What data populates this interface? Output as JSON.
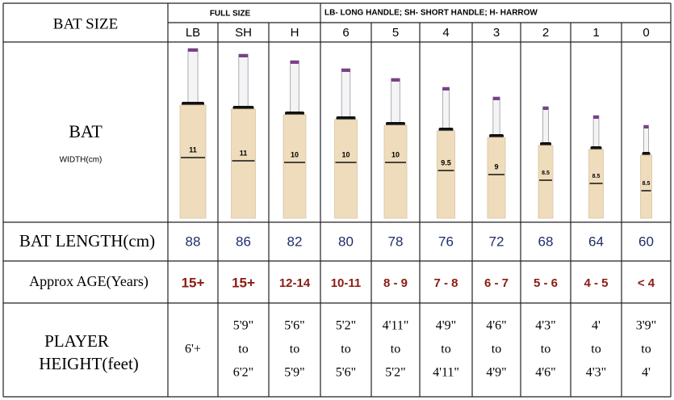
{
  "header": {
    "title": "BAT SIZE",
    "full_size": "FULL SIZE",
    "legend": "LB- LONG HANDLE; SH- SHORT HANDLE; H- HARROW"
  },
  "columns": [
    "LB",
    "SH",
    "H",
    "6",
    "5",
    "4",
    "3",
    "2",
    "1",
    "0"
  ],
  "rows": {
    "bat": {
      "label": "BAT",
      "sublabel": "WIDTH(cm)",
      "widths": [
        11,
        11,
        10,
        10,
        10,
        9.5,
        9,
        8.5,
        8.5,
        8.5
      ]
    },
    "length": {
      "label": "BAT LENGTH(cm)",
      "values": [
        88,
        86,
        82,
        80,
        78,
        76,
        72,
        68,
        64,
        60
      ]
    },
    "age": {
      "label": "Approx AGE(Years)",
      "values": [
        "15+",
        "15+",
        "12-14",
        "10-11",
        "8 - 9",
        "7 - 8",
        "6 - 7",
        "5 - 6",
        "4 - 5",
        "< 4"
      ]
    },
    "height": {
      "label": [
        "PLAYER",
        "HEIGHT(feet)"
      ],
      "values": [
        [
          "6'+"
        ],
        [
          "5'9\"",
          "to",
          "6'2\""
        ],
        [
          "5'6\"",
          "to",
          "5'9\""
        ],
        [
          "5'2\"",
          "to",
          "5'6\""
        ],
        [
          "4'11\"",
          "to",
          "5'2\""
        ],
        [
          "4'9\"",
          "to",
          "4'11\""
        ],
        [
          "4'6\"",
          "to",
          "4'9\""
        ],
        [
          "4'3\"",
          "to",
          "4'6\""
        ],
        [
          "4'",
          "to",
          "4'3\""
        ],
        [
          "3'9\"",
          "to",
          "4'"
        ]
      ]
    }
  }
}
